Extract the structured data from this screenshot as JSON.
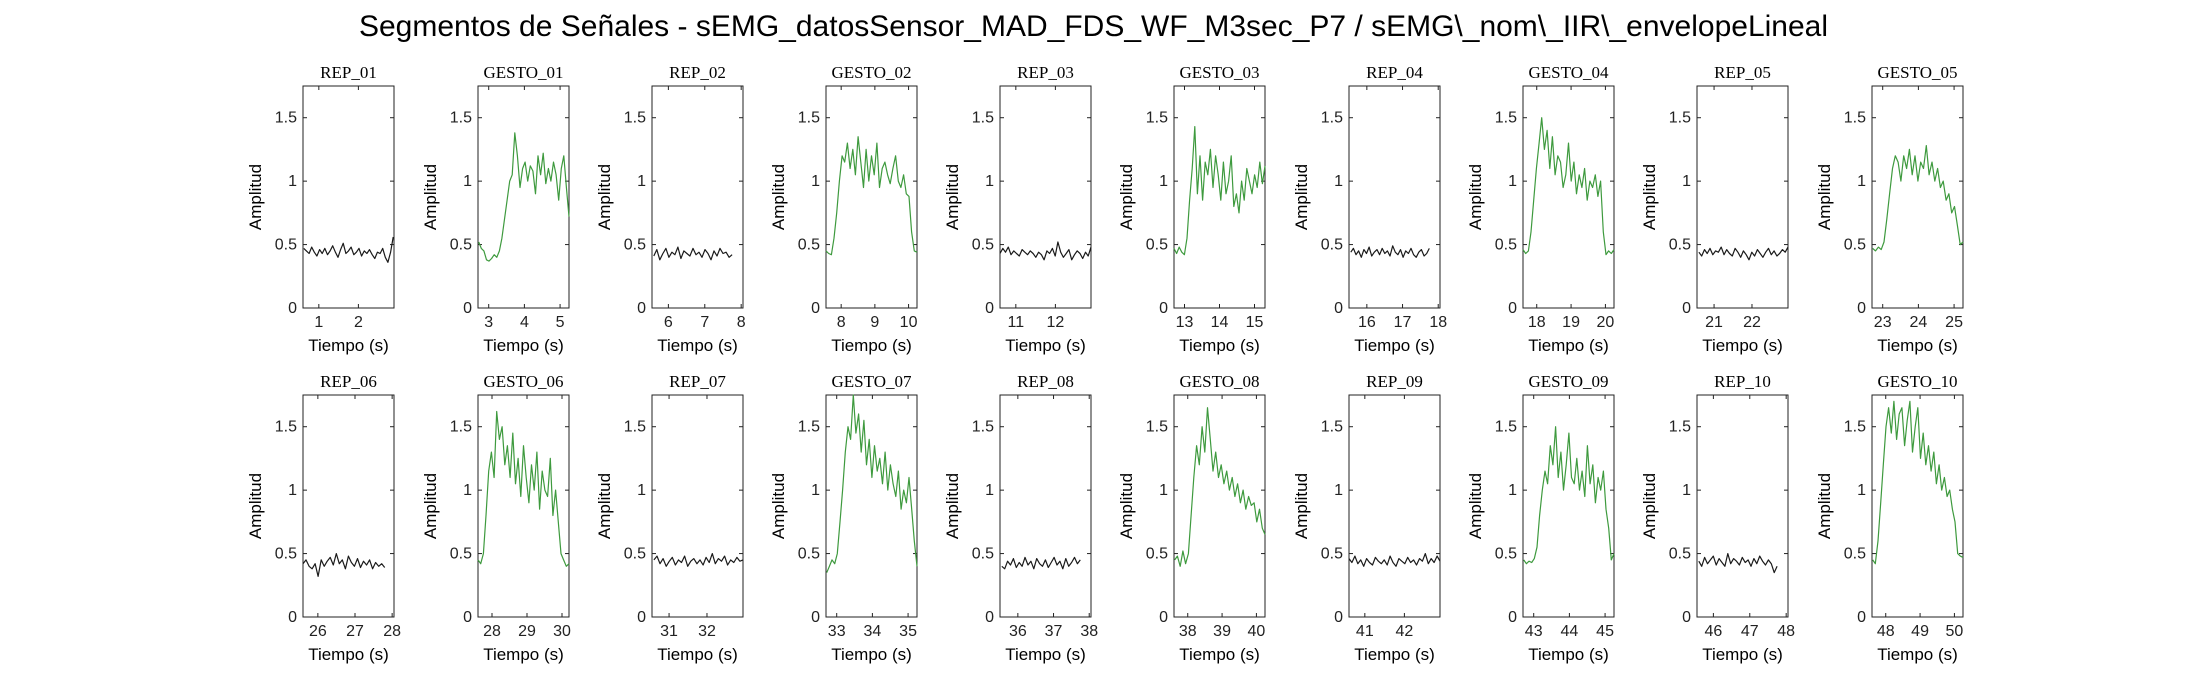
{
  "figure": {
    "title": "Segmentos de Señales - sEMG_datosSensor_MAD_FDS_WF_M3sec_P7 / sEMG\\_nom\\_IIR\\_envelopeLineal"
  },
  "colors": {
    "rep": "#1a1a1a",
    "gesture": "#3e9a3e",
    "axis": "#222222"
  },
  "chart_data": [
    {
      "type": "line",
      "title": "REP_01",
      "xlabel": "Tiempo (s)",
      "ylabel": "Amplitud",
      "xlim": [
        0.6,
        2.9
      ],
      "ylim": [
        0,
        1.75
      ],
      "xticks": [
        1,
        2
      ],
      "yticks": [
        0,
        0.5,
        1,
        1.5
      ],
      "yticklabels": [
        "0",
        "0.5",
        "1",
        "1.5"
      ],
      "color": "rep",
      "x_start": 0.62,
      "x_end": 2.88,
      "y": [
        0.47,
        0.45,
        0.43,
        0.48,
        0.44,
        0.41,
        0.46,
        0.43,
        0.47,
        0.42,
        0.45,
        0.49,
        0.44,
        0.4,
        0.46,
        0.51,
        0.43,
        0.45,
        0.48,
        0.42,
        0.44,
        0.47,
        0.41,
        0.45,
        0.43,
        0.46,
        0.42,
        0.39,
        0.44,
        0.43,
        0.47,
        0.4,
        0.36,
        0.44,
        0.56
      ]
    },
    {
      "type": "line",
      "title": "GESTO_01",
      "xlabel": "Tiempo (s)",
      "ylabel": "Amplitud",
      "xlim": [
        2.7,
        5.25
      ],
      "ylim": [
        0,
        1.75
      ],
      "xticks": [
        3,
        4,
        5
      ],
      "yticks": [
        0,
        0.5,
        1,
        1.5
      ],
      "yticklabels": [
        "0",
        "0.5",
        "1",
        "1.5"
      ],
      "color": "gesture",
      "x_start": 2.72,
      "x_end": 5.25,
      "y": [
        0.52,
        0.47,
        0.45,
        0.38,
        0.37,
        0.39,
        0.42,
        0.4,
        0.45,
        0.55,
        0.7,
        0.85,
        1.0,
        1.05,
        1.38,
        1.2,
        0.95,
        1.1,
        1.15,
        1.0,
        1.12,
        1.08,
        0.9,
        1.2,
        1.05,
        1.22,
        0.98,
        1.1,
        1.0,
        1.15,
        1.05,
        0.85,
        1.1,
        1.2,
        0.95,
        0.72
      ]
    },
    {
      "type": "line",
      "title": "REP_02",
      "xlabel": "Tiempo (s)",
      "ylabel": "Amplitud",
      "xlim": [
        5.55,
        8.05
      ],
      "ylim": [
        0,
        1.75
      ],
      "xticks": [
        6,
        7,
        8
      ],
      "yticks": [
        0,
        0.5,
        1,
        1.5
      ],
      "yticklabels": [
        "0",
        "0.5",
        "1",
        "1.5"
      ],
      "color": "rep",
      "x_start": 5.6,
      "x_end": 7.75,
      "y": [
        0.41,
        0.46,
        0.38,
        0.43,
        0.47,
        0.4,
        0.44,
        0.42,
        0.48,
        0.39,
        0.45,
        0.43,
        0.41,
        0.47,
        0.42,
        0.44,
        0.4,
        0.46,
        0.43,
        0.38,
        0.45,
        0.41,
        0.47,
        0.43,
        0.44,
        0.4,
        0.42
      ]
    },
    {
      "type": "line",
      "title": "GESTO_02",
      "xlabel": "Tiempo (s)",
      "ylabel": "Amplitud",
      "xlim": [
        7.55,
        10.25
      ],
      "ylim": [
        0,
        1.75
      ],
      "xticks": [
        8,
        9,
        10
      ],
      "yticks": [
        0,
        0.5,
        1,
        1.5
      ],
      "yticklabels": [
        "0",
        "0.5",
        "1",
        "1.5"
      ],
      "color": "gesture",
      "x_start": 7.55,
      "x_end": 10.25,
      "y": [
        0.45,
        0.43,
        0.42,
        0.55,
        0.75,
        1.0,
        1.2,
        1.15,
        1.3,
        1.1,
        1.25,
        1.05,
        1.35,
        1.15,
        0.95,
        1.25,
        1.0,
        1.2,
        1.05,
        1.3,
        0.95,
        1.1,
        1.15,
        1.05,
        0.98,
        1.1,
        1.2,
        1.0,
        0.95,
        1.05,
        0.9,
        0.88,
        0.6,
        0.45,
        0.44
      ]
    },
    {
      "type": "line",
      "title": "REP_03",
      "xlabel": "Tiempo (s)",
      "ylabel": "Amplitud",
      "xlim": [
        10.6,
        12.9
      ],
      "ylim": [
        0,
        1.75
      ],
      "xticks": [
        11,
        12
      ],
      "yticks": [
        0,
        0.5,
        1,
        1.5
      ],
      "yticklabels": [
        "0",
        "0.5",
        "1",
        "1.5"
      ],
      "color": "rep",
      "x_start": 10.6,
      "x_end": 12.9,
      "y": [
        0.43,
        0.47,
        0.44,
        0.48,
        0.42,
        0.45,
        0.43,
        0.41,
        0.46,
        0.44,
        0.42,
        0.45,
        0.43,
        0.4,
        0.44,
        0.42,
        0.38,
        0.45,
        0.43,
        0.47,
        0.41,
        0.52,
        0.44,
        0.4,
        0.43,
        0.46,
        0.38,
        0.42,
        0.45,
        0.43,
        0.39,
        0.44,
        0.41,
        0.48
      ]
    },
    {
      "type": "line",
      "title": "GESTO_03",
      "xlabel": "Tiempo (s)",
      "ylabel": "Amplitud",
      "xlim": [
        12.7,
        15.3
      ],
      "ylim": [
        0,
        1.75
      ],
      "xticks": [
        13,
        14,
        15
      ],
      "yticks": [
        0,
        0.5,
        1,
        1.5
      ],
      "yticklabels": [
        "0",
        "0.5",
        "1",
        "1.5"
      ],
      "color": "gesture",
      "x_start": 12.7,
      "x_end": 15.3,
      "y": [
        0.47,
        0.43,
        0.48,
        0.44,
        0.42,
        0.55,
        0.85,
        1.1,
        1.43,
        0.9,
        1.2,
        0.85,
        1.15,
        1.05,
        1.25,
        0.95,
        1.2,
        1.05,
        0.85,
        1.15,
        0.9,
        1.0,
        1.2,
        0.8,
        0.9,
        0.75,
        1.0,
        0.85,
        1.1,
        1.0,
        0.9,
        1.05,
        0.95,
        1.15,
        0.98,
        1.12
      ]
    },
    {
      "type": "line",
      "title": "REP_04",
      "xlabel": "Tiempo (s)",
      "ylabel": "Amplitud",
      "xlim": [
        15.5,
        18.05
      ],
      "ylim": [
        0,
        1.75
      ],
      "xticks": [
        16,
        17,
        18
      ],
      "yticks": [
        0,
        0.5,
        1,
        1.5
      ],
      "yticklabels": [
        "0",
        "0.5",
        "1",
        "1.5"
      ],
      "color": "rep",
      "x_start": 15.55,
      "x_end": 17.75,
      "y": [
        0.44,
        0.47,
        0.42,
        0.45,
        0.4,
        0.46,
        0.43,
        0.48,
        0.41,
        0.44,
        0.46,
        0.42,
        0.47,
        0.43,
        0.45,
        0.41,
        0.49,
        0.44,
        0.42,
        0.46,
        0.4,
        0.45,
        0.43,
        0.47,
        0.42,
        0.4,
        0.44,
        0.46,
        0.41,
        0.43,
        0.47
      ]
    },
    {
      "type": "line",
      "title": "GESTO_04",
      "xlabel": "Tiempo (s)",
      "ylabel": "Amplitud",
      "xlim": [
        17.6,
        20.25
      ],
      "ylim": [
        0,
        1.75
      ],
      "xticks": [
        18,
        19,
        20
      ],
      "yticks": [
        0,
        0.5,
        1,
        1.5
      ],
      "yticklabels": [
        "0",
        "0.5",
        "1",
        "1.5"
      ],
      "color": "gesture",
      "x_start": 17.6,
      "x_end": 20.25,
      "y": [
        0.46,
        0.43,
        0.45,
        0.6,
        0.85,
        1.1,
        1.3,
        1.5,
        1.25,
        1.4,
        1.1,
        1.35,
        1.05,
        1.2,
        1.15,
        0.95,
        1.05,
        1.3,
        1.0,
        1.15,
        0.9,
        1.05,
        0.95,
        1.1,
        0.85,
        1.0,
        0.95,
        1.05,
        0.88,
        1.0,
        0.6,
        0.42,
        0.45,
        0.43,
        0.46
      ]
    },
    {
      "type": "line",
      "title": "REP_05",
      "xlabel": "Tiempo (s)",
      "ylabel": "Amplitud",
      "xlim": [
        20.55,
        22.95
      ],
      "ylim": [
        0,
        1.75
      ],
      "xticks": [
        21,
        22
      ],
      "yticks": [
        0,
        0.5,
        1,
        1.5
      ],
      "yticklabels": [
        "0",
        "0.5",
        "1",
        "1.5"
      ],
      "color": "rep",
      "x_start": 20.6,
      "x_end": 22.95,
      "y": [
        0.44,
        0.41,
        0.46,
        0.43,
        0.47,
        0.42,
        0.45,
        0.44,
        0.48,
        0.42,
        0.46,
        0.43,
        0.41,
        0.47,
        0.44,
        0.4,
        0.45,
        0.42,
        0.38,
        0.44,
        0.41,
        0.46,
        0.43,
        0.4,
        0.44,
        0.47,
        0.42,
        0.45,
        0.41,
        0.43,
        0.46,
        0.44,
        0.48
      ]
    },
    {
      "type": "line",
      "title": "GESTO_05",
      "xlabel": "Tiempo (s)",
      "ylabel": "Amplitud",
      "xlim": [
        22.7,
        25.25
      ],
      "ylim": [
        0,
        1.75
      ],
      "xticks": [
        23,
        24,
        25
      ],
      "yticks": [
        0,
        0.5,
        1,
        1.5
      ],
      "yticklabels": [
        "0",
        "0.5",
        "1",
        "1.5"
      ],
      "color": "gesture",
      "x_start": 22.72,
      "x_end": 25.25,
      "y": [
        0.47,
        0.45,
        0.48,
        0.46,
        0.52,
        0.7,
        0.9,
        1.1,
        1.2,
        1.15,
        1.0,
        1.2,
        1.1,
        1.25,
        1.05,
        1.2,
        1.0,
        1.15,
        1.1,
        1.28,
        1.05,
        1.15,
        1.0,
        1.1,
        0.95,
        1.0,
        0.85,
        0.9,
        0.75,
        0.8,
        0.65,
        0.5,
        0.52
      ]
    },
    {
      "type": "line",
      "title": "REP_06",
      "xlabel": "Tiempo (s)",
      "ylabel": "Amplitud",
      "xlim": [
        25.6,
        28.05
      ],
      "ylim": [
        0,
        1.75
      ],
      "xticks": [
        26,
        27,
        28
      ],
      "yticks": [
        0,
        0.5,
        1,
        1.5
      ],
      "yticklabels": [
        "0",
        "0.5",
        "1",
        "1.5"
      ],
      "color": "rep",
      "x_start": 25.6,
      "x_end": 27.8,
      "y": [
        0.42,
        0.45,
        0.4,
        0.38,
        0.42,
        0.32,
        0.45,
        0.4,
        0.44,
        0.47,
        0.41,
        0.5,
        0.42,
        0.45,
        0.38,
        0.48,
        0.43,
        0.4,
        0.46,
        0.39,
        0.44,
        0.41,
        0.45,
        0.38,
        0.43,
        0.4,
        0.42,
        0.39
      ]
    },
    {
      "type": "line",
      "title": "GESTO_06",
      "xlabel": "Tiempo (s)",
      "ylabel": "Amplitud",
      "xlim": [
        27.6,
        30.2
      ],
      "ylim": [
        0,
        1.75
      ],
      "xticks": [
        28,
        29,
        30
      ],
      "yticks": [
        0,
        0.5,
        1,
        1.5
      ],
      "yticklabels": [
        "0",
        "0.5",
        "1",
        "1.5"
      ],
      "color": "gesture",
      "x_start": 27.6,
      "x_end": 30.2,
      "y": [
        0.45,
        0.42,
        0.5,
        0.8,
        1.15,
        1.3,
        1.1,
        1.62,
        1.4,
        1.5,
        1.2,
        1.35,
        1.1,
        1.45,
        1.05,
        1.25,
        0.95,
        1.35,
        1.1,
        0.9,
        1.2,
        1.0,
        1.3,
        0.85,
        1.15,
        1.0,
        0.95,
        1.25,
        0.8,
        1.0,
        0.75,
        0.5,
        0.45,
        0.4,
        0.42
      ]
    },
    {
      "type": "line",
      "title": "REP_07",
      "xlabel": "Tiempo (s)",
      "ylabel": "Amplitud",
      "xlim": [
        30.55,
        32.95
      ],
      "ylim": [
        0,
        1.75
      ],
      "xticks": [
        31,
        32
      ],
      "yticks": [
        0,
        0.5,
        1,
        1.5
      ],
      "yticklabels": [
        "0",
        "0.5",
        "1",
        "1.5"
      ],
      "color": "rep",
      "x_start": 30.6,
      "x_end": 32.95,
      "y": [
        0.45,
        0.48,
        0.42,
        0.46,
        0.4,
        0.44,
        0.47,
        0.41,
        0.45,
        0.43,
        0.48,
        0.4,
        0.44,
        0.46,
        0.42,
        0.45,
        0.41,
        0.47,
        0.43,
        0.5,
        0.42,
        0.46,
        0.44,
        0.48,
        0.41,
        0.45,
        0.43,
        0.47,
        0.44,
        0.45
      ]
    },
    {
      "type": "line",
      "title": "GESTO_07",
      "xlabel": "Tiempo (s)",
      "ylabel": "Amplitud",
      "xlim": [
        32.7,
        35.25
      ],
      "ylim": [
        0,
        1.75
      ],
      "xticks": [
        33,
        34,
        35
      ],
      "yticks": [
        0,
        0.5,
        1,
        1.5
      ],
      "yticklabels": [
        "0",
        "0.5",
        "1",
        "1.5"
      ],
      "color": "gesture",
      "x_start": 32.72,
      "x_end": 35.25,
      "y": [
        0.35,
        0.4,
        0.45,
        0.42,
        0.5,
        0.75,
        1.0,
        1.3,
        1.5,
        1.4,
        1.75,
        1.45,
        1.6,
        1.3,
        1.55,
        1.2,
        1.4,
        1.1,
        1.35,
        1.15,
        1.25,
        1.05,
        1.3,
        1.0,
        1.2,
        1.05,
        0.95,
        1.15,
        0.85,
        1.0,
        0.9,
        1.1,
        0.85,
        0.6,
        0.4
      ]
    },
    {
      "type": "line",
      "title": "REP_08",
      "xlabel": "Tiempo (s)",
      "ylabel": "Amplitud",
      "xlim": [
        35.5,
        38.05
      ],
      "ylim": [
        0,
        1.75
      ],
      "xticks": [
        36,
        37,
        38
      ],
      "yticks": [
        0,
        0.5,
        1,
        1.5
      ],
      "yticklabels": [
        "0",
        "0.5",
        "1",
        "1.5"
      ],
      "color": "rep",
      "x_start": 35.55,
      "x_end": 37.75,
      "y": [
        0.4,
        0.38,
        0.44,
        0.41,
        0.46,
        0.39,
        0.43,
        0.4,
        0.47,
        0.41,
        0.44,
        0.38,
        0.46,
        0.42,
        0.4,
        0.45,
        0.39,
        0.43,
        0.47,
        0.41,
        0.44,
        0.38,
        0.46,
        0.4,
        0.43,
        0.47,
        0.42,
        0.45
      ]
    },
    {
      "type": "line",
      "title": "GESTO_08",
      "xlabel": "Tiempo (s)",
      "ylabel": "Amplitud",
      "xlim": [
        37.6,
        40.25
      ],
      "ylim": [
        0,
        1.75
      ],
      "xticks": [
        38,
        39,
        40
      ],
      "yticks": [
        0,
        0.5,
        1,
        1.5
      ],
      "yticklabels": [
        "0",
        "0.5",
        "1",
        "1.5"
      ],
      "color": "gesture",
      "x_start": 37.62,
      "x_end": 40.25,
      "y": [
        0.45,
        0.48,
        0.4,
        0.52,
        0.42,
        0.5,
        0.8,
        1.1,
        1.35,
        1.2,
        1.5,
        1.3,
        1.65,
        1.4,
        1.15,
        1.3,
        1.1,
        1.2,
        1.05,
        1.15,
        1.0,
        1.1,
        0.95,
        1.05,
        0.9,
        1.0,
        0.85,
        0.95,
        0.88,
        0.9,
        0.75,
        0.85,
        0.7,
        0.65
      ]
    },
    {
      "type": "line",
      "title": "REP_09",
      "xlabel": "Tiempo (s)",
      "ylabel": "Amplitud",
      "xlim": [
        40.6,
        42.9
      ],
      "ylim": [
        0,
        1.75
      ],
      "xticks": [
        41,
        42
      ],
      "yticks": [
        0,
        0.5,
        1,
        1.5
      ],
      "yticklabels": [
        "0",
        "0.5",
        "1",
        "1.5"
      ],
      "color": "rep",
      "x_start": 40.6,
      "x_end": 42.9,
      "y": [
        0.46,
        0.43,
        0.48,
        0.42,
        0.45,
        0.4,
        0.46,
        0.43,
        0.41,
        0.47,
        0.44,
        0.42,
        0.45,
        0.41,
        0.48,
        0.43,
        0.4,
        0.46,
        0.44,
        0.42,
        0.47,
        0.43,
        0.45,
        0.41,
        0.46,
        0.44,
        0.5,
        0.42,
        0.46,
        0.43,
        0.48,
        0.44
      ]
    },
    {
      "type": "line",
      "title": "GESTO_09",
      "xlabel": "Tiempo (s)",
      "ylabel": "Amplitud",
      "xlim": [
        42.7,
        45.25
      ],
      "ylim": [
        0,
        1.75
      ],
      "xticks": [
        43,
        44,
        45
      ],
      "yticks": [
        0,
        0.5,
        1,
        1.5
      ],
      "yticklabels": [
        "0",
        "0.5",
        "1",
        "1.5"
      ],
      "color": "gesture",
      "x_start": 42.72,
      "x_end": 45.25,
      "y": [
        0.45,
        0.42,
        0.44,
        0.43,
        0.46,
        0.55,
        0.8,
        1.0,
        1.15,
        1.05,
        1.35,
        1.2,
        1.5,
        1.1,
        1.3,
        1.0,
        1.2,
        1.45,
        1.1,
        1.05,
        1.25,
        1.0,
        1.15,
        0.95,
        1.35,
        1.05,
        1.2,
        0.9,
        1.1,
        1.0,
        1.15,
        0.85,
        0.7,
        0.45,
        0.5
      ]
    },
    {
      "type": "line",
      "title": "REP_10",
      "xlabel": "Tiempo (s)",
      "ylabel": "Amplitud",
      "xlim": [
        45.55,
        48.05
      ],
      "ylim": [
        0,
        1.75
      ],
      "xticks": [
        46,
        47,
        48
      ],
      "yticks": [
        0,
        0.5,
        1,
        1.5
      ],
      "yticklabels": [
        "0",
        "0.5",
        "1",
        "1.5"
      ],
      "color": "rep",
      "x_start": 45.6,
      "x_end": 47.75,
      "y": [
        0.44,
        0.4,
        0.47,
        0.42,
        0.45,
        0.48,
        0.41,
        0.46,
        0.43,
        0.4,
        0.5,
        0.42,
        0.46,
        0.44,
        0.41,
        0.47,
        0.43,
        0.45,
        0.4,
        0.46,
        0.42,
        0.48,
        0.44,
        0.41,
        0.45,
        0.42,
        0.35,
        0.4
      ]
    },
    {
      "type": "line",
      "title": "GESTO_10",
      "xlabel": "Tiempo (s)",
      "ylabel": "Amplitud",
      "xlim": [
        47.6,
        50.25
      ],
      "ylim": [
        0,
        1.75
      ],
      "xticks": [
        48,
        49,
        50
      ],
      "yticks": [
        0,
        0.5,
        1,
        1.5
      ],
      "yticklabels": [
        "0",
        "0.5",
        "1",
        "1.5"
      ],
      "color": "gesture",
      "x_start": 47.62,
      "x_end": 50.25,
      "y": [
        0.45,
        0.42,
        0.6,
        0.9,
        1.2,
        1.5,
        1.65,
        1.45,
        1.7,
        1.4,
        1.6,
        1.65,
        1.35,
        1.55,
        1.7,
        1.3,
        1.5,
        1.65,
        1.25,
        1.45,
        1.2,
        1.35,
        1.15,
        1.3,
        1.05,
        1.2,
        1.0,
        1.1,
        0.95,
        1.0,
        0.85,
        0.75,
        0.5,
        0.48,
        0.47
      ]
    }
  ]
}
